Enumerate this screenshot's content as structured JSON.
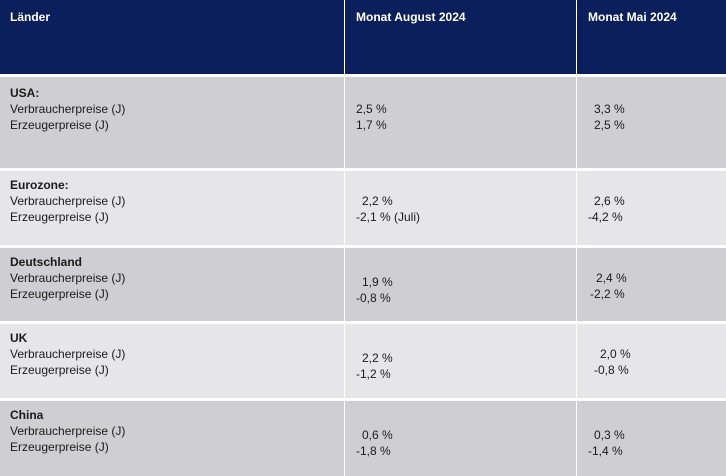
{
  "header": {
    "col1": "Länder",
    "col2": "Monat August 2024",
    "col3": "Monat Mai 2024"
  },
  "rows": [
    {
      "country": "USA:",
      "label1": "Verbraucherpreise (J)",
      "label2": "Erzeugerpreise (J)",
      "aug1": "2,5 %",
      "aug2": "1,7 %",
      "may1": "3,3 %",
      "may2": "2,5 %"
    },
    {
      "country": "Eurozone:",
      "label1": "Verbraucherpreise (J)",
      "label2": "Erzeugerpreise (J)",
      "aug1": "2,2 %",
      "aug2": "-2,1 % (Juli)",
      "may1": "2,6 %",
      "may2": "-4,2 %"
    },
    {
      "country": "Deutschland",
      "label1": "Verbraucherpreise (J)",
      "label2": "Erzeugerpreise (J)",
      "aug1": "1,9 %",
      "aug2": "-0,8 %",
      "may1": "2,4 %",
      "may2": "-2,2 %"
    },
    {
      "country": "UK",
      "label1": "Verbraucherpreise (J)",
      "label2": "Erzeugerpreise (J)",
      "aug1": "2,2 %",
      "aug2": "-1,2 %",
      "may1": "2,0 %",
      "may2": "-0,8 %"
    },
    {
      "country": "China",
      "label1": "Verbraucherpreise (J)",
      "label2": "Erzeugerpreise (J)",
      "aug1": "0,6 %",
      "aug2": "-1,8 %",
      "may1": "0,3 %",
      "may2": "-1,4 %"
    }
  ],
  "colors": {
    "header_bg": "#0b1f5c",
    "row_dark": "#cfcfd3",
    "row_light": "#e6e6e9"
  }
}
